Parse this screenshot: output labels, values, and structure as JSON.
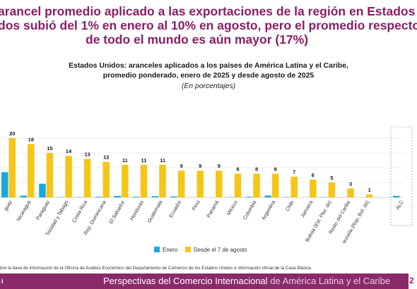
{
  "headline": {
    "line1": "arancel promedio aplicado a las exportaciones de la región en Estados",
    "line2": "dos subió del 1% en enero al 10% en agosto, pero el promedio respecto",
    "line3": "de todo el mundo es aún mayor (17%)"
  },
  "chart_data": {
    "type": "bar",
    "title_line1": "Estados Unidos: aranceles aplicados a los países de América Latina y el Caribe,",
    "title_line2": "promedio ponderado, enero de 2025 y desde agosto de 2025",
    "subtitle": "(En porcentajes)",
    "ylim": [
      0,
      22
    ],
    "grid": true,
    "legend_position": "bottom",
    "categories": [
      "Uruguay",
      "Nicaragua",
      "Paraguay",
      "Trinidad y Tabago",
      "Costa Rica",
      "Rep. Dominicana",
      "El Salvador",
      "Honduras",
      "Guatemala",
      "Ecuador",
      "Perú",
      "Panamá",
      "México",
      "Colombia",
      "Argentina",
      "Chile",
      "Jamaica",
      "Bolivia (Est. Plur. de)",
      "Resto del Caribe",
      "Venezuela (Rep. Bol. de)",
      "ALC"
    ],
    "series": [
      {
        "name": "Enero",
        "color": "#1ba7dd",
        "values": [
          8.5,
          0.6,
          4.6,
          0.1,
          0.1,
          0.2,
          0.5,
          0.2,
          0.4,
          0.3,
          0,
          0,
          0.1,
          0.2,
          0.6,
          0.1,
          0,
          0.1,
          0,
          0,
          0.5
        ]
      },
      {
        "name": "Desde el 7 de agosto",
        "color": "#f5c518",
        "values": [
          20,
          18,
          15,
          14,
          13,
          12,
          11,
          11,
          11,
          9,
          9,
          9,
          8,
          8,
          8,
          7,
          6,
          5,
          3,
          1,
          null
        ]
      }
    ],
    "data_labels": [
      "20",
      "18",
      "15",
      "14",
      "13",
      "12",
      "11",
      "11",
      "11",
      "9",
      "9",
      "9",
      "8",
      "8",
      "8",
      "7",
      "6",
      "5",
      "3",
      "1",
      ""
    ],
    "category_label_text": {
      "first": "guay",
      "last": "ALC"
    }
  },
  "source_note": "bre la base de información de la Oficina de Análisis Económico del Departamento de Comercio de los Estados Unidos e información oficial de la Casa Blanca.",
  "footer": {
    "logo": "i",
    "title_main": "Perspectivas del Comercio Internacional",
    "title_rest": " de  América Latina y el Caribe",
    "page": "2"
  }
}
